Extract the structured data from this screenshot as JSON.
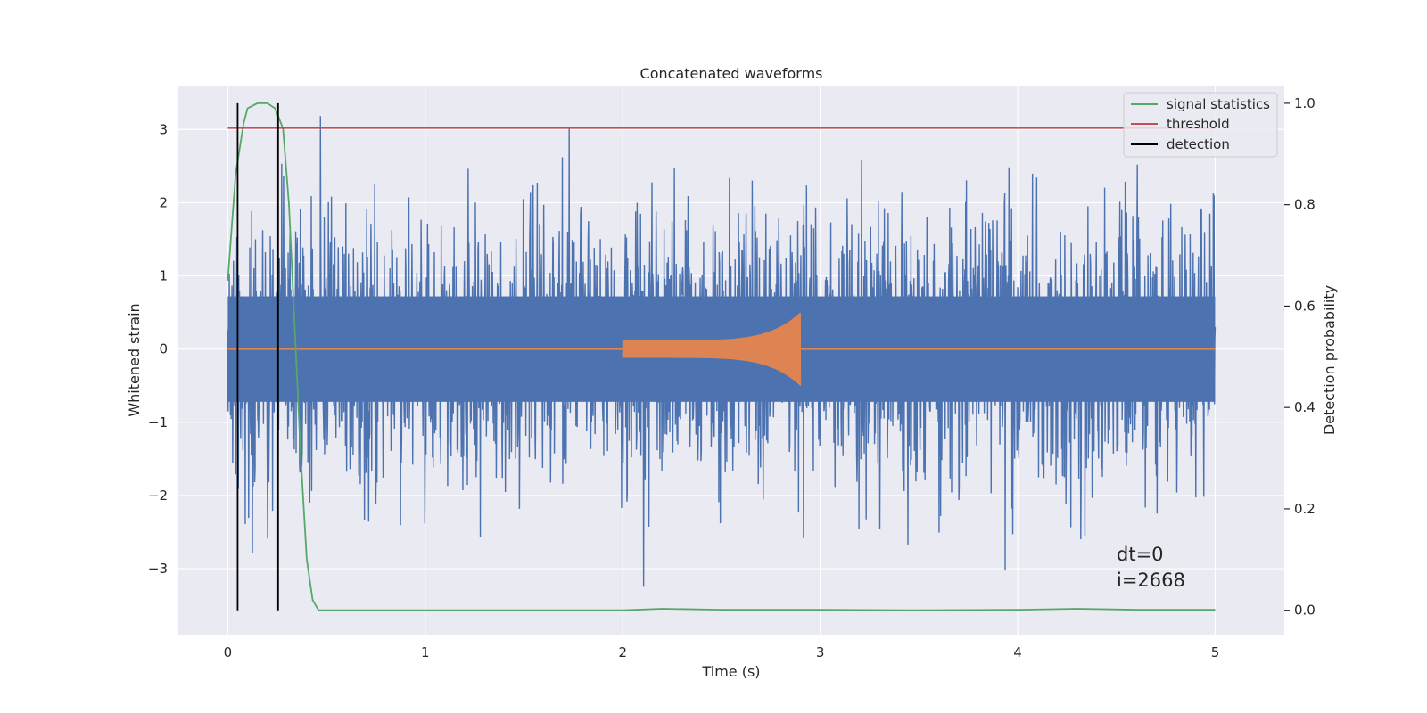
{
  "chart_data": {
    "type": "line",
    "title": "Concatenated waveforms",
    "xlabel": "Time (s)",
    "ylabel_left": "Whitened strain",
    "ylabel_right": "Detection probability",
    "xlim": [
      -0.25,
      5.35
    ],
    "ylim_left": [
      -3.9,
      3.6
    ],
    "ylim_right": [
      -0.048,
      1.035
    ],
    "x_ticks": [
      0,
      1,
      2,
      3,
      4,
      5
    ],
    "x_tick_labels": [
      "0",
      "1",
      "2",
      "3",
      "4",
      "5"
    ],
    "y_left_ticks": [
      -3,
      -2,
      -1,
      0,
      1,
      2,
      3
    ],
    "y_left_tick_labels": [
      "−3",
      "−2",
      "−1",
      "0",
      "1",
      "2",
      "3"
    ],
    "y_right_ticks": [
      0.0,
      0.2,
      0.4,
      0.6,
      0.8,
      1.0
    ],
    "y_right_tick_labels": [
      "0.0",
      "0.2",
      "0.4",
      "0.6",
      "0.8",
      "1.0"
    ],
    "grid": true,
    "legend_placement": "top-right",
    "legend": [
      {
        "label": "signal statistics",
        "color": "#55a868"
      },
      {
        "label": "threshold",
        "color": "#c44e52"
      },
      {
        "label": "detection",
        "color": "#000000"
      }
    ],
    "series": [
      {
        "kind": "noise",
        "axis": "left",
        "color": "#4c72b0",
        "x_range": [
          0,
          5
        ],
        "typical_range": [
          -2.5,
          2.5
        ],
        "max": 3.3,
        "min": -3.55
      },
      {
        "kind": "chirp",
        "axis": "left",
        "color": "#dd8452",
        "x_range": [
          2,
          2.9
        ],
        "start_amplitude": 0.12,
        "peak_amplitude": 0.5,
        "peak_x": 2.9,
        "baseline": 0
      },
      {
        "name": "signal statistics",
        "axis": "right",
        "color": "#55a868",
        "x": [
          0,
          0.04,
          0.08,
          0.1,
          0.15,
          0.2,
          0.24,
          0.28,
          0.31,
          0.34,
          0.37,
          0.4,
          0.43,
          0.46,
          1.0,
          2.0,
          2.2,
          2.5,
          3.0,
          3.5,
          4.0,
          4.3,
          4.6,
          5.0
        ],
        "y": [
          0.65,
          0.86,
          0.96,
          0.99,
          1.0,
          1.0,
          0.99,
          0.95,
          0.8,
          0.55,
          0.3,
          0.1,
          0.02,
          0.0,
          0.0,
          0.0,
          0.003,
          0.001,
          0.001,
          0.0,
          0.001,
          0.003,
          0.001,
          0.001
        ]
      },
      {
        "name": "threshold",
        "axis": "right",
        "color": "#c44e52",
        "x": [
          0,
          5
        ],
        "y": [
          0.951,
          0.951
        ]
      },
      {
        "name": "detection",
        "axis": "right",
        "color": "#000000",
        "x_positions": [
          0.05,
          0.255
        ],
        "y_range": [
          0.0,
          1.0
        ]
      }
    ],
    "annotations": [
      "dt=0",
      "i=2668"
    ]
  }
}
